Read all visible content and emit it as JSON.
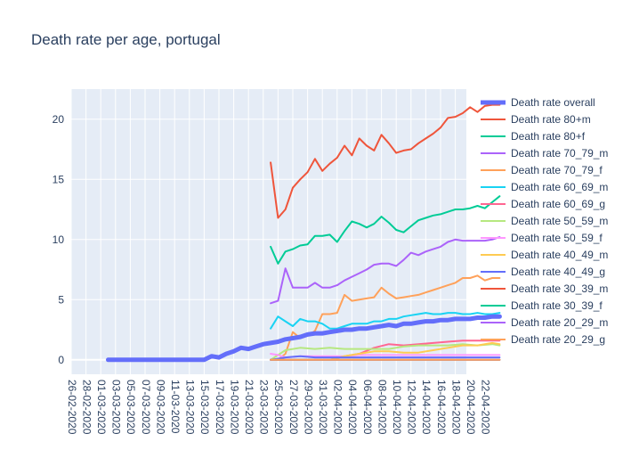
{
  "chart_data": {
    "type": "line",
    "title": "Death rate per age, portugal",
    "xlabel": "",
    "ylabel": "",
    "ylim": [
      -1.2,
      22.5
    ],
    "grid": true,
    "legend_position": "right",
    "yticks": [
      0,
      5,
      10,
      15,
      20
    ],
    "x_tick_labels": [
      "26-02-2020",
      "28-02-2020",
      "01-03-2020",
      "03-03-2020",
      "05-03-2020",
      "07-03-2020",
      "09-03-2020",
      "11-03-2020",
      "13-03-2020",
      "15-03-2020",
      "17-03-2020",
      "19-03-2020",
      "21-03-2020",
      "23-03-2020",
      "25-03-2020",
      "27-03-2020",
      "29-03-2020",
      "31-03-2020",
      "02-04-2020",
      "04-04-2020",
      "06-04-2020",
      "08-04-2020",
      "10-04-2020",
      "12-04-2020",
      "14-04-2020",
      "16-04-2020",
      "18-04-2020",
      "20-04-2020",
      "22-04-2020"
    ],
    "series": [
      {
        "name": "Death rate overall",
        "color": "#636efa",
        "bold": true,
        "x": [
          "02-03-2020",
          "06-03-2020",
          "10-03-2020",
          "14-03-2020",
          "15-03-2020",
          "16-03-2020",
          "17-03-2020",
          "18-03-2020",
          "19-03-2020",
          "20-03-2020",
          "21-03-2020",
          "22-03-2020",
          "23-03-2020",
          "24-03-2020",
          "25-03-2020",
          "26-03-2020",
          "27-03-2020",
          "28-03-2020",
          "29-03-2020",
          "30-03-2020",
          "31-03-2020",
          "01-04-2020",
          "02-04-2020",
          "03-04-2020",
          "04-04-2020",
          "05-04-2020",
          "06-04-2020",
          "07-04-2020",
          "08-04-2020",
          "09-04-2020",
          "10-04-2020",
          "11-04-2020",
          "12-04-2020",
          "13-04-2020",
          "14-04-2020",
          "15-04-2020",
          "16-04-2020",
          "17-04-2020",
          "18-04-2020",
          "19-04-2020",
          "20-04-2020",
          "21-04-2020",
          "22-04-2020",
          "23-04-2020",
          "24-04-2020"
        ],
        "values": [
          0,
          0,
          0,
          0,
          0,
          0.3,
          0.2,
          0.5,
          0.7,
          1.0,
          0.9,
          1.1,
          1.3,
          1.4,
          1.5,
          1.7,
          1.8,
          1.9,
          2.1,
          2.2,
          2.2,
          2.3,
          2.4,
          2.5,
          2.5,
          2.6,
          2.6,
          2.7,
          2.8,
          2.9,
          2.8,
          3.0,
          3.0,
          3.1,
          3.2,
          3.2,
          3.3,
          3.3,
          3.4,
          3.4,
          3.4,
          3.5,
          3.5,
          3.6,
          3.6
        ]
      },
      {
        "name": "Death rate 80+m",
        "color": "#EF553B",
        "x": [
          "24-03-2020",
          "25-03-2020",
          "26-03-2020",
          "27-03-2020",
          "28-03-2020",
          "29-03-2020",
          "30-03-2020",
          "31-03-2020",
          "01-04-2020",
          "02-04-2020",
          "03-04-2020",
          "04-04-2020",
          "05-04-2020",
          "06-04-2020",
          "07-04-2020",
          "08-04-2020",
          "09-04-2020",
          "10-04-2020",
          "11-04-2020",
          "12-04-2020",
          "13-04-2020",
          "14-04-2020",
          "15-04-2020",
          "16-04-2020",
          "17-04-2020",
          "18-04-2020",
          "19-04-2020",
          "20-04-2020",
          "21-04-2020",
          "22-04-2020",
          "23-04-2020",
          "24-04-2020"
        ],
        "values": [
          16.4,
          11.8,
          12.5,
          14.3,
          15.0,
          15.6,
          16.7,
          15.7,
          16.3,
          16.8,
          17.8,
          17.0,
          18.4,
          17.8,
          17.4,
          18.7,
          18.0,
          17.2,
          17.4,
          17.5,
          18.0,
          18.4,
          18.8,
          19.3,
          20.1,
          20.2,
          20.5,
          21.0,
          20.6,
          21.1,
          21.2,
          21.2
        ]
      },
      {
        "name": "Death rate 80+f",
        "color": "#00cc96",
        "x": [
          "24-03-2020",
          "25-03-2020",
          "26-03-2020",
          "27-03-2020",
          "28-03-2020",
          "29-03-2020",
          "30-03-2020",
          "31-03-2020",
          "01-04-2020",
          "02-04-2020",
          "03-04-2020",
          "04-04-2020",
          "05-04-2020",
          "06-04-2020",
          "07-04-2020",
          "08-04-2020",
          "09-04-2020",
          "10-04-2020",
          "11-04-2020",
          "12-04-2020",
          "13-04-2020",
          "14-04-2020",
          "15-04-2020",
          "16-04-2020",
          "17-04-2020",
          "18-04-2020",
          "19-04-2020",
          "20-04-2020",
          "21-04-2020",
          "22-04-2020",
          "23-04-2020",
          "24-04-2020"
        ],
        "values": [
          9.4,
          8.0,
          9.0,
          9.2,
          9.5,
          9.6,
          10.3,
          10.3,
          10.4,
          9.8,
          10.7,
          11.5,
          11.3,
          11.0,
          11.3,
          11.9,
          11.4,
          10.8,
          10.6,
          11.1,
          11.6,
          11.8,
          12.0,
          12.1,
          12.3,
          12.5,
          12.5,
          12.6,
          12.8,
          12.6,
          13.1,
          13.6
        ]
      },
      {
        "name": "Death rate 70_79_m",
        "color": "#ab63fa",
        "x": [
          "24-03-2020",
          "25-03-2020",
          "26-03-2020",
          "27-03-2020",
          "28-03-2020",
          "29-03-2020",
          "30-03-2020",
          "31-03-2020",
          "01-04-2020",
          "02-04-2020",
          "03-04-2020",
          "04-04-2020",
          "05-04-2020",
          "06-04-2020",
          "07-04-2020",
          "08-04-2020",
          "09-04-2020",
          "10-04-2020",
          "11-04-2020",
          "12-04-2020",
          "13-04-2020",
          "14-04-2020",
          "15-04-2020",
          "16-04-2020",
          "17-04-2020",
          "18-04-2020",
          "19-04-2020",
          "20-04-2020",
          "21-04-2020",
          "22-04-2020",
          "23-04-2020",
          "24-04-2020"
        ],
        "values": [
          4.7,
          4.9,
          7.6,
          6.0,
          6.0,
          6.0,
          6.4,
          6.0,
          6.0,
          6.2,
          6.6,
          6.9,
          7.2,
          7.5,
          7.9,
          8.0,
          8.0,
          7.8,
          8.3,
          8.9,
          8.7,
          9.0,
          9.2,
          9.4,
          9.8,
          10.0,
          9.9,
          9.9,
          9.9,
          9.9,
          10.0,
          10.2
        ]
      },
      {
        "name": "Death rate 70_79_f",
        "color": "#FFA15A",
        "x": [
          "24-03-2020",
          "25-03-2020",
          "26-03-2020",
          "27-03-2020",
          "28-03-2020",
          "29-03-2020",
          "30-03-2020",
          "31-03-2020",
          "01-04-2020",
          "02-04-2020",
          "03-04-2020",
          "04-04-2020",
          "05-04-2020",
          "06-04-2020",
          "07-04-2020",
          "08-04-2020",
          "09-04-2020",
          "10-04-2020",
          "11-04-2020",
          "12-04-2020",
          "13-04-2020",
          "14-04-2020",
          "15-04-2020",
          "16-04-2020",
          "17-04-2020",
          "18-04-2020",
          "19-04-2020",
          "20-04-2020",
          "21-04-2020",
          "22-04-2020",
          "23-04-2020",
          "24-04-2020"
        ],
        "values": [
          0,
          0,
          0.5,
          2.3,
          1.8,
          2.0,
          2.4,
          3.8,
          3.8,
          3.9,
          5.4,
          4.9,
          5.0,
          5.1,
          5.2,
          6.0,
          5.5,
          5.1,
          5.2,
          5.3,
          5.4,
          5.6,
          5.8,
          6.0,
          6.2,
          6.4,
          6.8,
          6.8,
          7.0,
          6.6,
          6.8,
          6.8
        ]
      },
      {
        "name": "Death rate 60_69_m",
        "color": "#19d3f3",
        "x": [
          "24-03-2020",
          "25-03-2020",
          "26-03-2020",
          "27-03-2020",
          "28-03-2020",
          "29-03-2020",
          "30-03-2020",
          "31-03-2020",
          "01-04-2020",
          "02-04-2020",
          "03-04-2020",
          "04-04-2020",
          "05-04-2020",
          "06-04-2020",
          "07-04-2020",
          "08-04-2020",
          "09-04-2020",
          "10-04-2020",
          "11-04-2020",
          "12-04-2020",
          "13-04-2020",
          "14-04-2020",
          "15-04-2020",
          "16-04-2020",
          "17-04-2020",
          "18-04-2020",
          "19-04-2020",
          "20-04-2020",
          "21-04-2020",
          "22-04-2020",
          "23-04-2020",
          "24-04-2020"
        ],
        "values": [
          2.6,
          3.6,
          3.2,
          2.8,
          3.4,
          3.2,
          3.2,
          3.0,
          2.6,
          2.6,
          2.8,
          3.0,
          3.0,
          3.0,
          3.2,
          3.2,
          3.4,
          3.4,
          3.6,
          3.7,
          3.8,
          3.9,
          3.8,
          3.8,
          3.9,
          3.9,
          3.8,
          3.8,
          3.9,
          3.8,
          3.8,
          3.9
        ]
      },
      {
        "name": "Death rate 60_69_g",
        "color": "#FF6692",
        "x": [
          "24-03-2020",
          "26-03-2020",
          "28-03-2020",
          "30-03-2020",
          "01-04-2020",
          "03-04-2020",
          "05-04-2020",
          "07-04-2020",
          "09-04-2020",
          "11-04-2020",
          "13-04-2020",
          "15-04-2020",
          "17-04-2020",
          "19-04-2020",
          "21-04-2020",
          "22-04-2020",
          "23-04-2020",
          "24-04-2020"
        ],
        "values": [
          0,
          0,
          0,
          0,
          0,
          0.3,
          0.5,
          1.0,
          1.3,
          1.2,
          1.3,
          1.4,
          1.5,
          1.6,
          1.6,
          1.6,
          1.6,
          1.6
        ]
      },
      {
        "name": "Death rate 50_59_m",
        "color": "#B6E880",
        "x": [
          "24-03-2020",
          "26-03-2020",
          "28-03-2020",
          "30-03-2020",
          "01-04-2020",
          "03-04-2020",
          "05-04-2020",
          "07-04-2020",
          "09-04-2020",
          "11-04-2020",
          "13-04-2020",
          "15-04-2020",
          "17-04-2020",
          "19-04-2020",
          "21-04-2020",
          "23-04-2020",
          "24-04-2020"
        ],
        "values": [
          0,
          0.8,
          1.0,
          0.9,
          1.0,
          0.9,
          0.9,
          0.9,
          0.9,
          1.1,
          1.2,
          1.2,
          1.2,
          1.3,
          1.2,
          1.3,
          1.2
        ]
      },
      {
        "name": "Death rate 50_59_f",
        "color": "#FF97FF",
        "x": [
          "24-03-2020",
          "25-03-2020",
          "26-03-2020",
          "28-03-2020",
          "30-03-2020",
          "01-04-2020",
          "03-04-2020",
          "05-04-2020",
          "07-04-2020",
          "09-04-2020",
          "11-04-2020",
          "13-04-2020",
          "15-04-2020",
          "17-04-2020",
          "19-04-2020",
          "21-04-2020",
          "23-04-2020",
          "24-04-2020"
        ],
        "values": [
          0.5,
          0.4,
          0.2,
          0.3,
          0.3,
          0.3,
          0.3,
          0.4,
          0.4,
          0.4,
          0.4,
          0.4,
          0.4,
          0.4,
          0.4,
          0.4,
          0.4,
          0.4
        ]
      },
      {
        "name": "Death rate 40_49_m",
        "color": "#FECB52",
        "x": [
          "24-03-2020",
          "26-03-2020",
          "28-03-2020",
          "30-03-2020",
          "01-04-2020",
          "03-04-2020",
          "05-04-2020",
          "07-04-2020",
          "09-04-2020",
          "11-04-2020",
          "13-04-2020",
          "15-04-2020",
          "17-04-2020",
          "19-04-2020",
          "21-04-2020",
          "23-04-2020",
          "24-04-2020"
        ],
        "values": [
          0,
          0,
          0,
          0,
          0,
          0.3,
          0.5,
          0.7,
          0.7,
          0.6,
          0.6,
          0.8,
          1.0,
          1.2,
          1.2,
          1.4,
          1.3
        ]
      },
      {
        "name": "Death rate 40_49_g",
        "color": "#636efa",
        "x": [
          "24-03-2020",
          "26-03-2020",
          "28-03-2020",
          "30-03-2020",
          "01-04-2020",
          "03-04-2020",
          "05-04-2020",
          "07-04-2020",
          "09-04-2020",
          "11-04-2020",
          "13-04-2020",
          "15-04-2020",
          "17-04-2020",
          "19-04-2020",
          "21-04-2020",
          "23-04-2020",
          "24-04-2020"
        ],
        "values": [
          0,
          0.2,
          0.3,
          0.2,
          0.2,
          0.2,
          0.2,
          0.2,
          0.2,
          0.2,
          0.2,
          0.2,
          0.2,
          0.2,
          0.2,
          0.2,
          0.2
        ]
      },
      {
        "name": "Death rate 30_39_m",
        "color": "#EF553B",
        "x": [
          "24-03-2020",
          "27-03-2020",
          "30-03-2020",
          "02-04-2020",
          "05-04-2020",
          "08-04-2020",
          "11-04-2020",
          "14-04-2020",
          "17-04-2020",
          "20-04-2020",
          "23-04-2020",
          "24-04-2020"
        ],
        "values": [
          0,
          0,
          0,
          0,
          0,
          0,
          0,
          0,
          0,
          0,
          0,
          0
        ]
      },
      {
        "name": "Death rate 30_39_f",
        "color": "#00cc96",
        "x": [
          "24-03-2020",
          "27-03-2020",
          "30-03-2020",
          "02-04-2020",
          "05-04-2020",
          "08-04-2020",
          "11-04-2020",
          "14-04-2020",
          "17-04-2020",
          "20-04-2020",
          "23-04-2020",
          "24-04-2020"
        ],
        "values": [
          0,
          0,
          0,
          0,
          0,
          0,
          0,
          0,
          0,
          0,
          0,
          0
        ]
      },
      {
        "name": "Death rate 20_29_m",
        "color": "#ab63fa",
        "x": [
          "24-03-2020",
          "27-03-2020",
          "30-03-2020",
          "02-04-2020",
          "05-04-2020",
          "08-04-2020",
          "11-04-2020",
          "14-04-2020",
          "17-04-2020",
          "20-04-2020",
          "23-04-2020",
          "24-04-2020"
        ],
        "values": [
          0,
          0,
          0,
          0,
          0,
          0,
          0,
          0,
          0,
          0,
          0,
          0
        ]
      },
      {
        "name": "Death rate 20_29_g",
        "color": "#FFA15A",
        "x": [
          "24-03-2020",
          "27-03-2020",
          "30-03-2020",
          "02-04-2020",
          "05-04-2020",
          "08-04-2020",
          "11-04-2020",
          "14-04-2020",
          "17-04-2020",
          "20-04-2020",
          "23-04-2020",
          "24-04-2020"
        ],
        "values": [
          0,
          0,
          0,
          0,
          0,
          0,
          0,
          0,
          0,
          0,
          0,
          0
        ]
      }
    ]
  }
}
